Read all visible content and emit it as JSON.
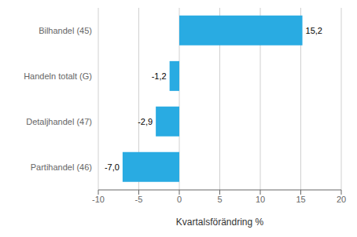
{
  "chart_data": {
    "type": "bar",
    "orientation": "horizontal",
    "categories": [
      "Partihandel (46)",
      "Detaljhandel (47)",
      "Handeln totalt (G)",
      "Bilhandel (45)"
    ],
    "values": [
      -7.0,
      -2.9,
      -1.2,
      15.2
    ],
    "value_labels": [
      "-7,0",
      "-2,9",
      "-1,2",
      "15,2"
    ],
    "data_labels": true,
    "color": "#29abe2",
    "xlabel": "Kvartalsförändring %",
    "xlim": [
      -10,
      20
    ],
    "xticks": [
      -10,
      -5,
      0,
      5,
      10,
      15,
      20
    ],
    "grid": true
  }
}
